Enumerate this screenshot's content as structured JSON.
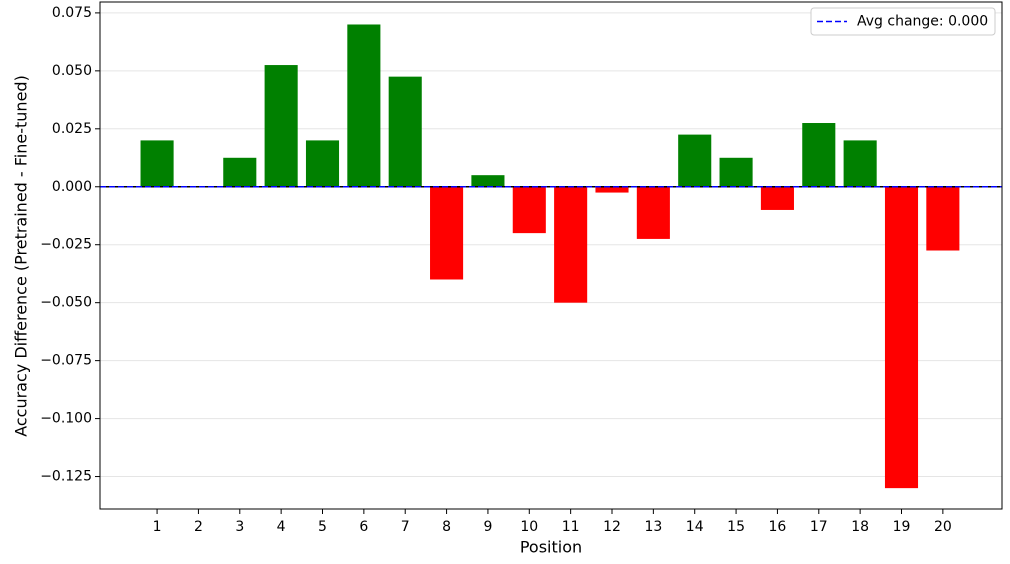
{
  "chart_data": {
    "type": "bar",
    "x_label": "Position",
    "y_label": "Accuracy Difference (Pretrained - Fine-tuned)",
    "x": [
      1,
      2,
      3,
      4,
      5,
      6,
      7,
      8,
      9,
      10,
      11,
      12,
      13,
      14,
      15,
      16,
      17,
      18,
      19,
      20
    ],
    "values": [
      0.02,
      0,
      0.0125,
      0.0525,
      0.02,
      0.07,
      0.0475,
      -0.04,
      0.005,
      -0.02,
      -0.05,
      -0.0025,
      -0.0225,
      0.0225,
      0.0125,
      -0.01,
      0.0275,
      0.02,
      -0.13,
      -0.0275
    ],
    "positive_color": "#008000",
    "negative_color": "#ff0000",
    "xlim": [
      -0.38,
      21.43
    ],
    "xticks": [
      1,
      2,
      3,
      4,
      5,
      6,
      7,
      8,
      9,
      10,
      11,
      12,
      13,
      14,
      15,
      16,
      17,
      18,
      19,
      20
    ],
    "ylim": [
      -0.139,
      0.0797
    ],
    "yticks": [
      {
        "value": -0.125,
        "label": "−0.125"
      },
      {
        "value": -0.1,
        "label": "−0.100"
      },
      {
        "value": -0.075,
        "label": "−0.075"
      },
      {
        "value": -0.05,
        "label": "−0.050"
      },
      {
        "value": -0.025,
        "label": "−0.025"
      },
      {
        "value": 0,
        "label": "0.000"
      },
      {
        "value": 0.025,
        "label": "0.025"
      },
      {
        "value": 0.05,
        "label": "0.050"
      },
      {
        "value": 0.075,
        "label": "0.075"
      }
    ],
    "grid": true,
    "reference_lines": [
      {
        "name": "Avg change: 0.000",
        "value": 0,
        "color": "#0000ff",
        "style": "dashed"
      }
    ],
    "legend": "upper right"
  }
}
